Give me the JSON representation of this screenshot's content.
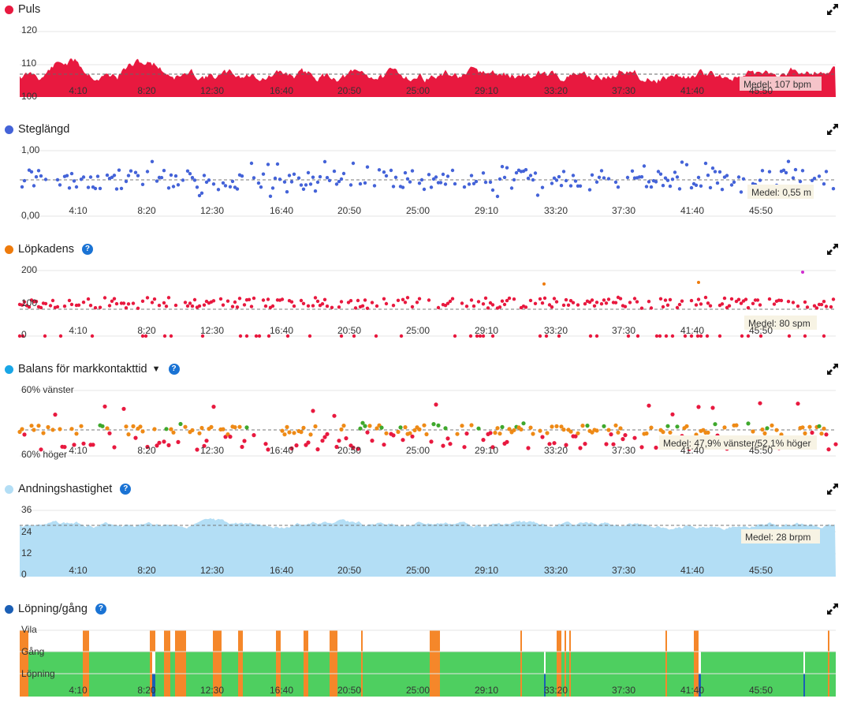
{
  "x_ticks": [
    "4:10",
    "8:20",
    "12:30",
    "16:40",
    "20:50",
    "25:00",
    "29:10",
    "33:20",
    "37:30",
    "41:40",
    "45:50"
  ],
  "panels": [
    {
      "id": "puls",
      "title": "Puls",
      "color": "#e8193f",
      "help": false,
      "dropdown": false,
      "y_ticks": [
        "120",
        "110",
        "100"
      ],
      "avg_label": "Medel: 107 bpm",
      "chart_data": {
        "type": "area",
        "series": "heart rate",
        "y_unit": "bpm",
        "ylim": [
          100,
          120
        ],
        "average": 107,
        "range_seen": [
          101,
          114
        ]
      }
    },
    {
      "id": "steg",
      "title": "Steglängd",
      "color": "#4463d8",
      "help": false,
      "dropdown": false,
      "y_ticks": [
        "1,00",
        "0,00"
      ],
      "avg_label": "Medel: 0,55 m",
      "chart_data": {
        "type": "scatter",
        "y_unit": "m",
        "ylim": [
          0,
          1
        ],
        "average": 0.55
      }
    },
    {
      "id": "kadens",
      "title": "Löpkadens",
      "color": "#ee7b0c",
      "help": true,
      "dropdown": false,
      "y_ticks": [
        "200",
        "100",
        "0"
      ],
      "avg_label": "Medel: 80 spm",
      "chart_data": {
        "type": "scatter",
        "y_unit": "spm",
        "ylim": [
          0,
          200
        ],
        "average": 80
      }
    },
    {
      "id": "balans",
      "title": "Balans för markkontakttid",
      "color": "#19a6e6",
      "help": true,
      "dropdown": true,
      "y_ticks": [
        "60% vänster",
        "60% höger"
      ],
      "avg_label": "Medel: 47,9% vänster/52,1% höger",
      "chart_data": {
        "type": "scatter",
        "ylim": [
          "60% vänster",
          "60% höger"
        ],
        "average": {
          "left": 47.9,
          "right": 52.1
        }
      }
    },
    {
      "id": "andning",
      "title": "Andningshastighet",
      "color": "#b3def5",
      "help": true,
      "dropdown": false,
      "y_ticks": [
        "36",
        "24",
        "12",
        "0"
      ],
      "avg_label": "Medel: 28 brpm",
      "chart_data": {
        "type": "area",
        "y_unit": "brpm",
        "ylim": [
          0,
          36
        ],
        "average": 28
      }
    },
    {
      "id": "lopning",
      "title": "Löpning/gång",
      "color": "#1b5fb5",
      "help": true,
      "dropdown": false,
      "y_ticks": [
        "Vila",
        "Gång",
        "Löpning"
      ],
      "avg_label": "",
      "chart_data": {
        "type": "bar",
        "categories": [
          "Vila",
          "Gång",
          "Löpning"
        ],
        "colors": {
          "Löpning": "#4ecf60",
          "Gång": "#f5872a",
          "Vila": "#ffffff"
        }
      }
    }
  ],
  "colors": {
    "grid": "#e6e6e6",
    "avg_line": "#777777",
    "avg_box": "#f7f3e4"
  },
  "icons": {
    "expand": "expand-icon",
    "help": "help-icon",
    "dropdown": "caret-down-icon"
  }
}
